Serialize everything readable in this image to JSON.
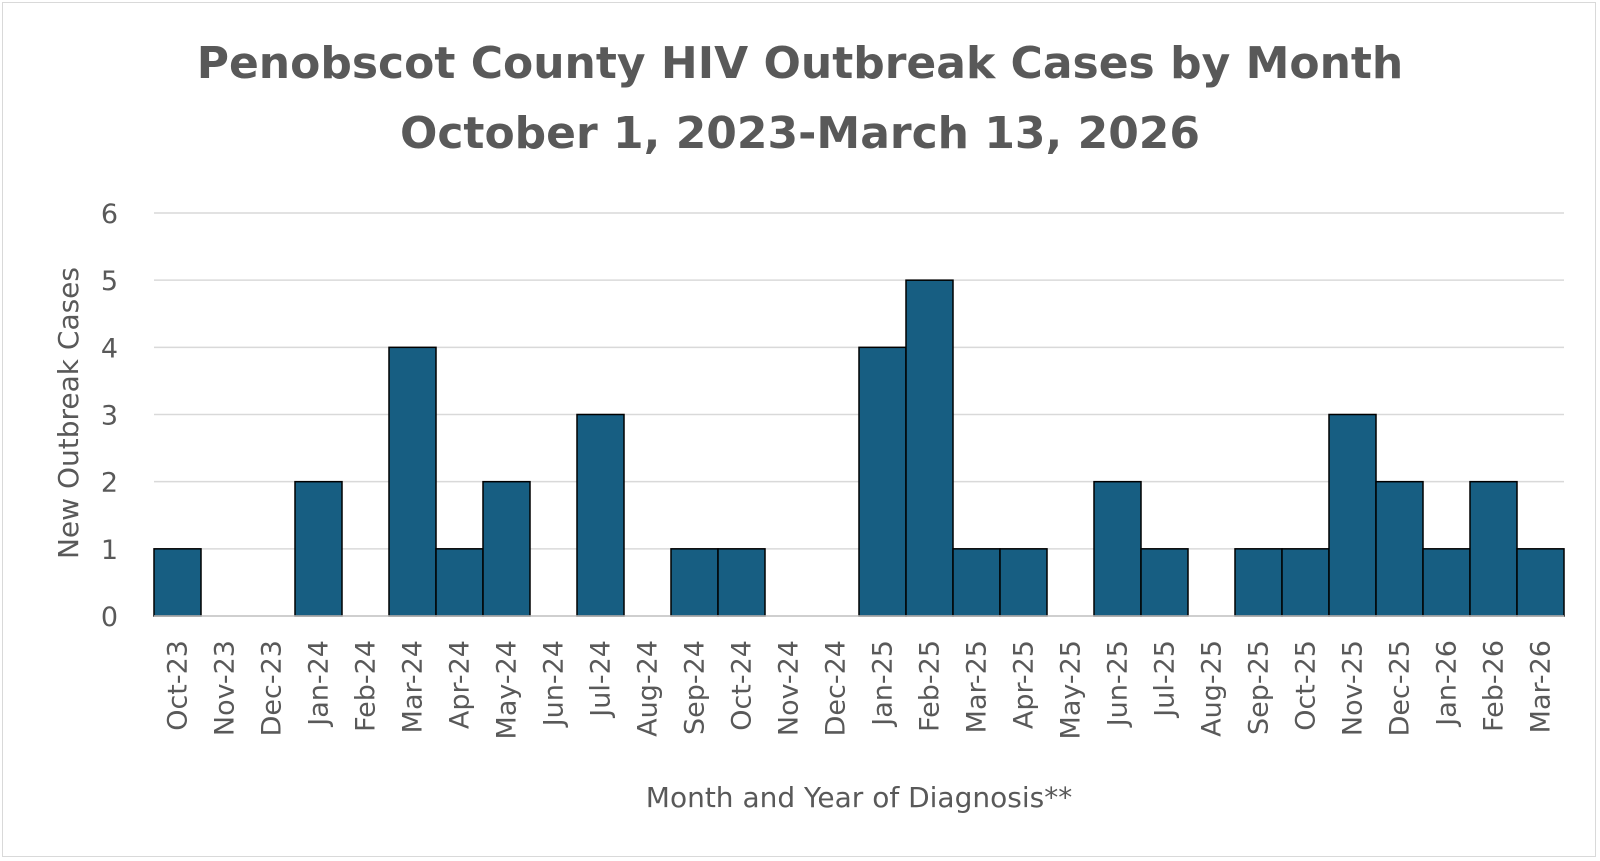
{
  "chart_data": {
    "type": "bar",
    "title": "Penobscot County HIV Outbreak Cases by Month",
    "subtitle": "October 1, 2023-March 13, 2026",
    "xlabel": "Month and Year of Diagnosis**",
    "ylabel": "New Outbreak Cases",
    "ylim": [
      0,
      6
    ],
    "yticks": [
      "0",
      "1",
      "2",
      "3",
      "4",
      "5",
      "6"
    ],
    "grid": true,
    "bar_color": "#175e82",
    "bar_edge_color": "#000000",
    "categories": [
      "Oct-23",
      "Nov-23",
      "Dec-23",
      "Jan-24",
      "Feb-24",
      "Mar-24",
      "Apr-24",
      "May-24",
      "Jun-24",
      "Jul-24",
      "Aug-24",
      "Sep-24",
      "Oct-24",
      "Nov-24",
      "Dec-24",
      "Jan-25",
      "Feb-25",
      "Mar-25",
      "Apr-25",
      "May-25",
      "Jun-25",
      "Jul-25",
      "Aug-25",
      "Sep-25",
      "Oct-25",
      "Nov-25",
      "Dec-25",
      "Jan-26",
      "Feb-26",
      "Mar-26"
    ],
    "values": [
      1,
      0,
      0,
      2,
      0,
      4,
      1,
      2,
      0,
      3,
      0,
      1,
      1,
      0,
      0,
      4,
      5,
      1,
      1,
      0,
      2,
      1,
      0,
      1,
      1,
      3,
      2,
      1,
      2,
      1
    ]
  }
}
